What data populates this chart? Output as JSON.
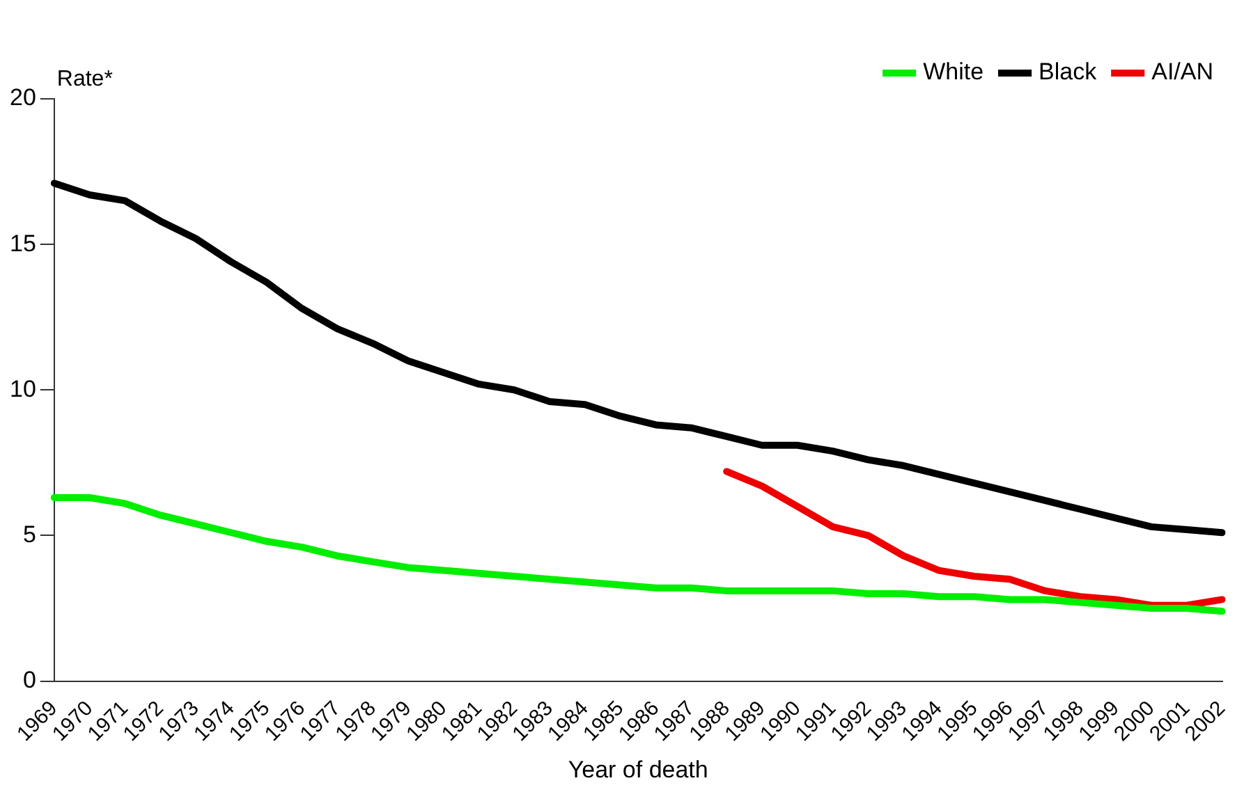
{
  "chart_data": {
    "type": "line",
    "ylabel": "Rate*",
    "xlabel": "Year of death",
    "categories": [
      "1969",
      "1970",
      "1971",
      "1972",
      "1973",
      "1974",
      "1975",
      "1976",
      "1977",
      "1978",
      "1979",
      "1980",
      "1981",
      "1982",
      "1983",
      "1984",
      "1985",
      "1986",
      "1987",
      "1988",
      "1989",
      "1990",
      "1991",
      "1992",
      "1993",
      "1994",
      "1995",
      "1996",
      "1997",
      "1998",
      "1999",
      "2000",
      "2001",
      "2002"
    ],
    "series": [
      {
        "name": "White",
        "color": "#00ee00",
        "values": [
          6.3,
          6.3,
          6.1,
          5.7,
          5.4,
          5.1,
          4.8,
          4.6,
          4.3,
          4.1,
          3.9,
          3.8,
          3.7,
          3.6,
          3.5,
          3.4,
          3.3,
          3.2,
          3.2,
          3.1,
          3.1,
          3.1,
          3.1,
          3.0,
          3.0,
          2.9,
          2.9,
          2.8,
          2.8,
          2.7,
          2.6,
          2.5,
          2.5,
          2.4
        ]
      },
      {
        "name": "Black",
        "color": "#000000",
        "values": [
          17.1,
          16.7,
          16.5,
          15.8,
          15.2,
          14.4,
          13.7,
          12.8,
          12.1,
          11.6,
          11.0,
          10.6,
          10.2,
          10.0,
          9.6,
          9.5,
          9.1,
          8.8,
          8.7,
          8.4,
          8.1,
          8.1,
          7.9,
          7.6,
          7.4,
          7.1,
          6.8,
          6.5,
          6.2,
          5.9,
          5.6,
          5.3,
          5.2,
          5.1
        ]
      },
      {
        "name": "AI/AN",
        "color": "#ee0000",
        "values": [
          null,
          null,
          null,
          null,
          null,
          null,
          null,
          null,
          null,
          null,
          null,
          null,
          null,
          null,
          null,
          null,
          null,
          null,
          null,
          7.2,
          6.7,
          6.0,
          5.3,
          5.0,
          4.3,
          3.8,
          3.6,
          3.5,
          3.1,
          2.9,
          2.8,
          2.6,
          2.6,
          2.8
        ]
      }
    ],
    "ylim": [
      0,
      20
    ],
    "yticks": [
      0,
      5,
      10,
      15,
      20
    ],
    "grid": false,
    "legend": "top right",
    "marker": "none",
    "line_style": "solid"
  }
}
